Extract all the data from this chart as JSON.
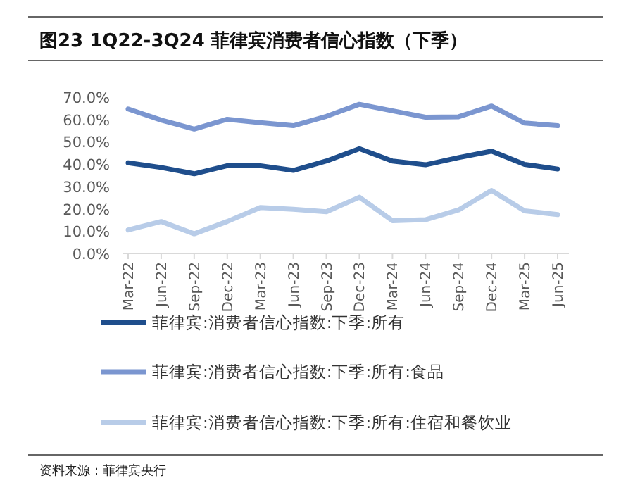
{
  "chart_data": {
    "type": "line",
    "title": "图23 1Q22-3Q24 菲律宾消费者信心指数（下季）",
    "annotations": [
      "资料来源：菲律宾央行"
    ],
    "categories": [
      "Mar-22",
      "Jun-22",
      "Sep-22",
      "Dec-22",
      "Mar-23",
      "Jun-23",
      "Sep-23",
      "Dec-23",
      "Mar-24",
      "Jun-24",
      "Sep-24",
      "Dec-24",
      "Mar-25",
      "Jun-25"
    ],
    "series": [
      {
        "name": "菲律宾:消费者信心指数:下季:所有",
        "color": "#1f4e8c",
        "values": [
          40.6,
          38.5,
          35.7,
          39.3,
          39.3,
          37.2,
          41.4,
          46.9,
          41.4,
          39.7,
          42.9,
          45.8,
          39.9,
          37.8
        ]
      },
      {
        "name": "菲律宾:消费者信心指数:下季:所有:食品",
        "color": "#7b96d0",
        "values": [
          64.7,
          59.7,
          55.7,
          60.1,
          58.6,
          57.2,
          61.4,
          66.8,
          63.9,
          61.0,
          61.2,
          66.0,
          58.4,
          57.2
        ]
      },
      {
        "name": "菲律宾:消费者信心指数:下季:所有:住宿和餐饮业",
        "color": "#b8cce8",
        "values": [
          10.5,
          14.3,
          8.8,
          14.3,
          20.6,
          19.8,
          18.7,
          25.2,
          14.7,
          15.1,
          19.5,
          28.2,
          19.1,
          17.4
        ]
      }
    ],
    "ylim": [
      0,
      70
    ],
    "yticks": [
      {
        "value": 0,
        "label": "0.0%"
      },
      {
        "value": 10,
        "label": "10.0%"
      },
      {
        "value": 20,
        "label": "20.0%"
      },
      {
        "value": 30,
        "label": "30.0%"
      },
      {
        "value": 40,
        "label": "40.0%"
      },
      {
        "value": 50,
        "label": "50.0%"
      },
      {
        "value": 60,
        "label": "60.0%"
      },
      {
        "value": 70,
        "label": "70.0%"
      }
    ],
    "legend": "bottom"
  }
}
